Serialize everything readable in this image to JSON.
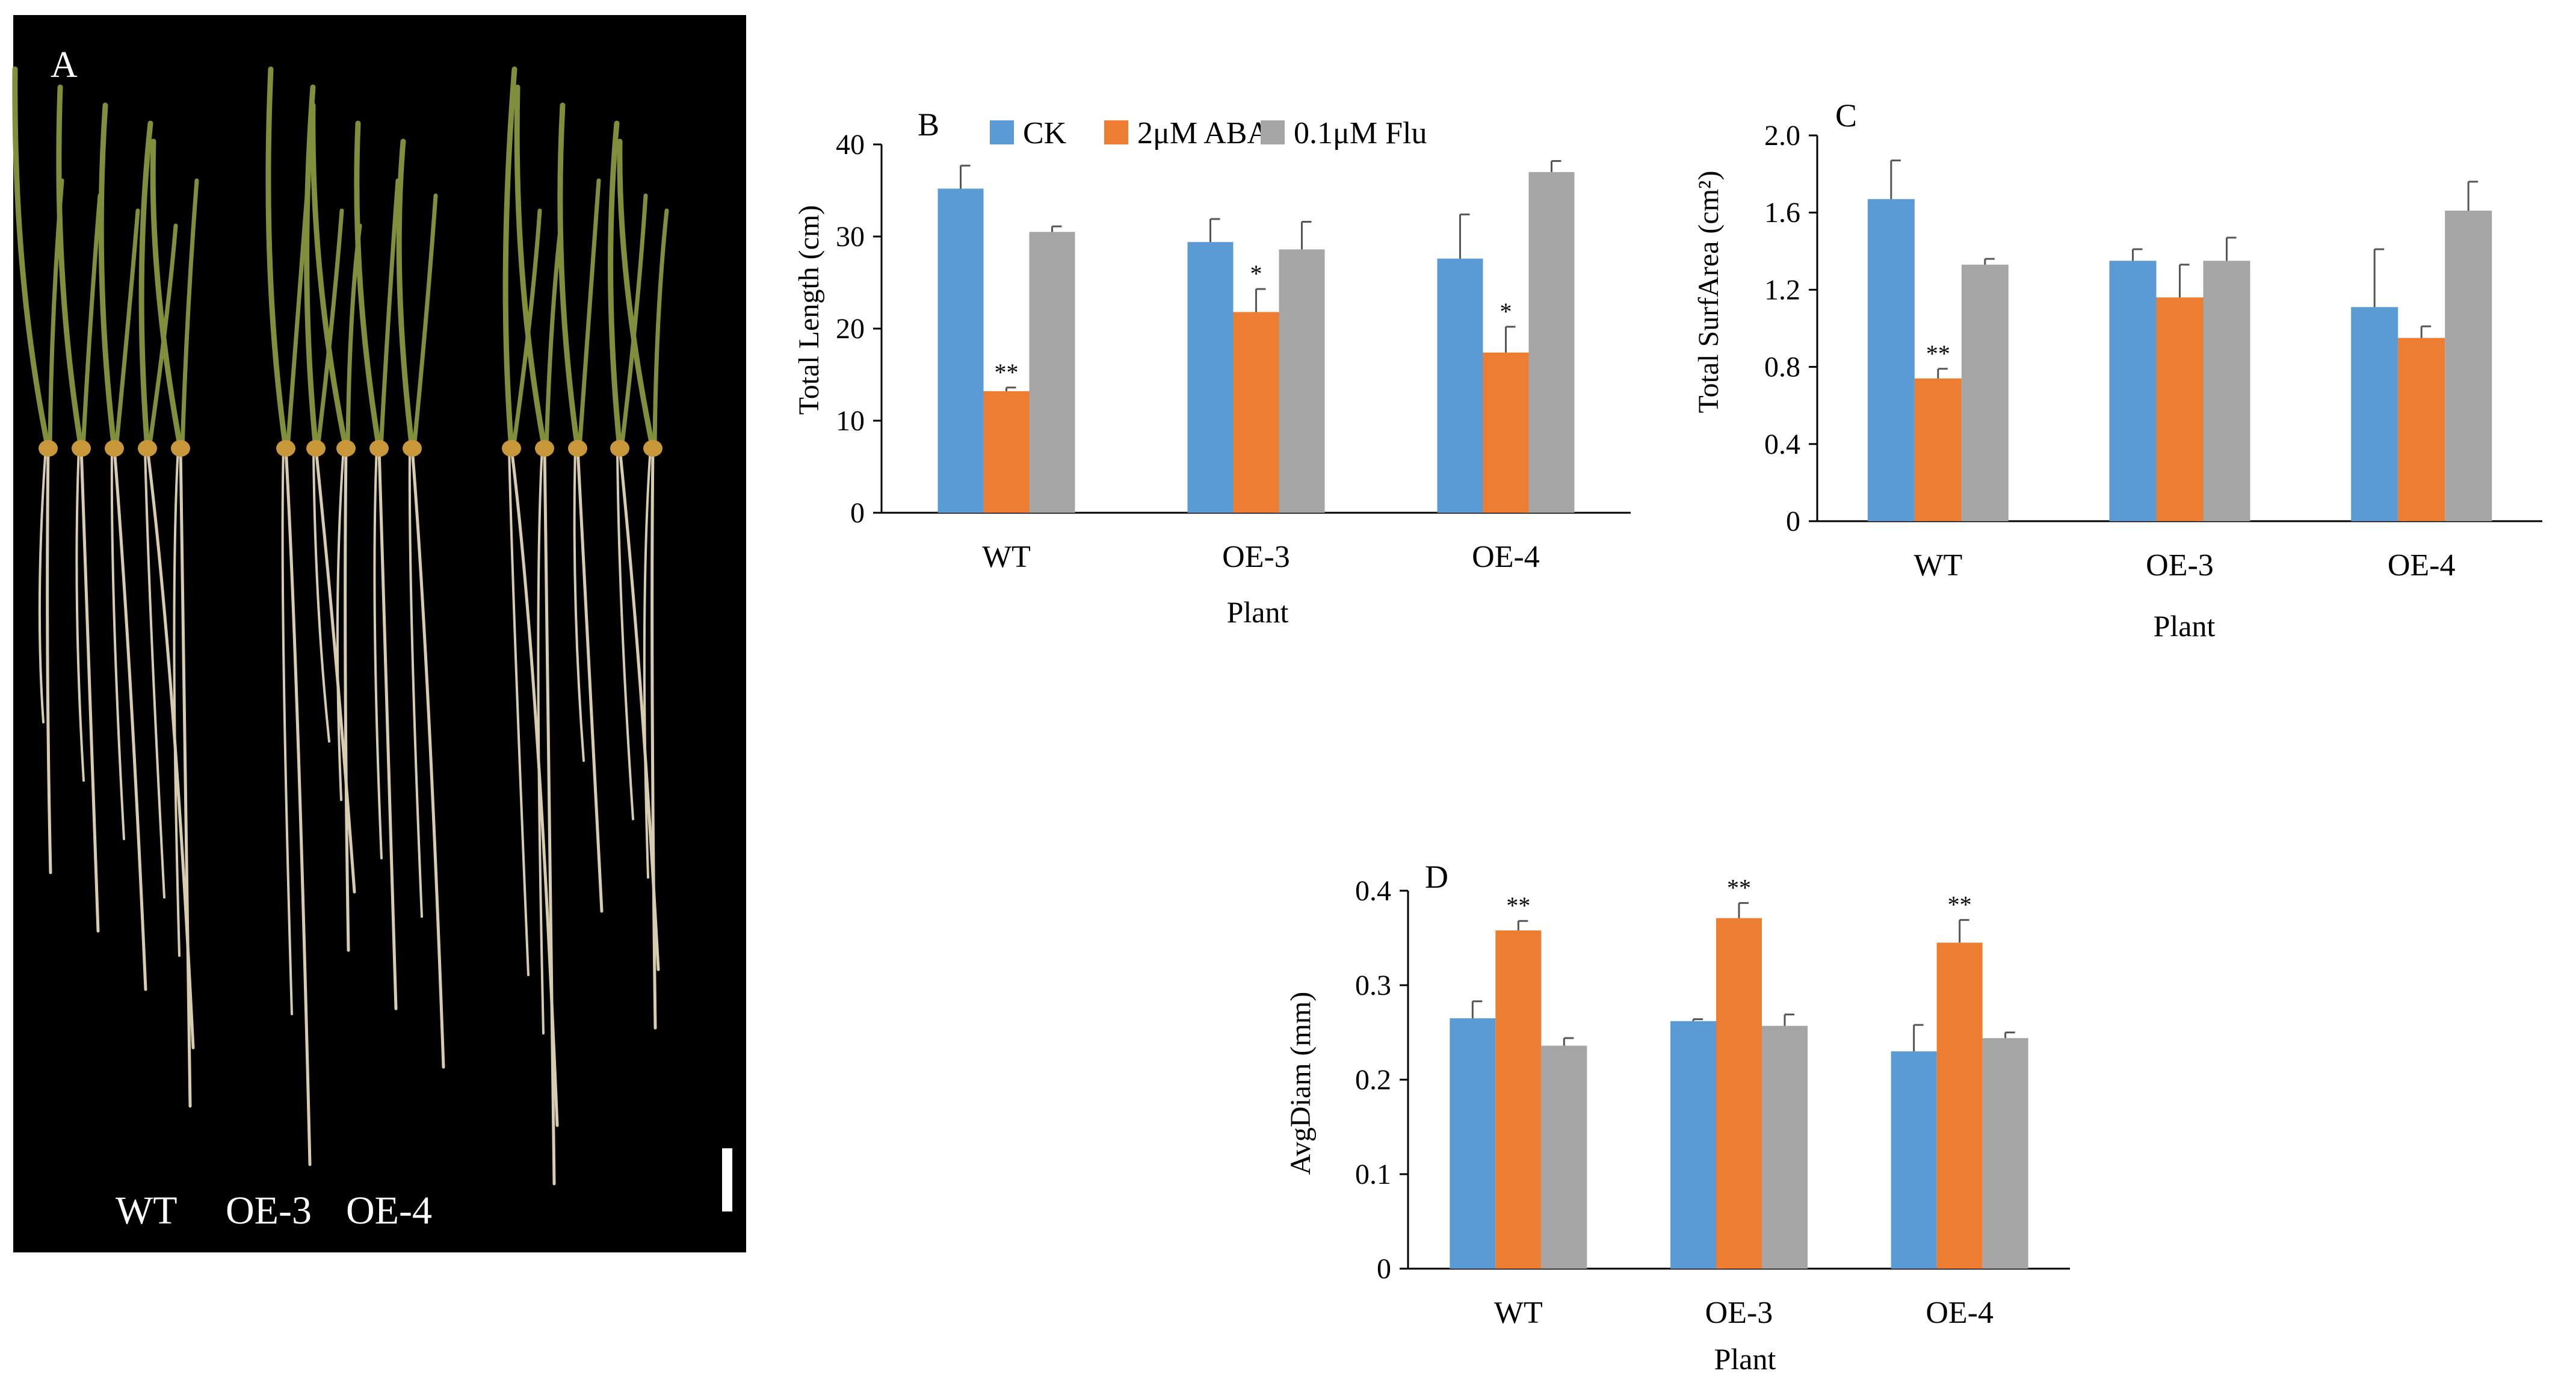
{
  "panel_a": {
    "label": "A",
    "genotype_labels": [
      "WT",
      "OE-3",
      "OE-4"
    ],
    "colors": {
      "background": "#000000",
      "leaf": "#7f8f3c",
      "root": "#d8ccb0",
      "seed": "#c8973a",
      "scale_bar": "#ffffff"
    }
  },
  "legend": [
    {
      "name": "CK",
      "color": "#5b9bd5"
    },
    {
      "name": "2μM ABA",
      "color": "#ed7d31"
    },
    {
      "name": "0.1μM Flu",
      "color": "#a5a5a5"
    }
  ],
  "chart_data": [
    {
      "panel": "B",
      "type": "bar",
      "title": "",
      "xlabel": "Plant",
      "ylabel": "Total Length (cm)",
      "categories": [
        "WT",
        "OE-3",
        "OE-4"
      ],
      "ylim": [
        0,
        40
      ],
      "yticks": [
        "0",
        "10",
        "20",
        "30",
        "40"
      ],
      "series": [
        {
          "name": "CK",
          "values": [
            35.2,
            29.4,
            27.6
          ],
          "errors": [
            2.5,
            2.5,
            4.8
          ]
        },
        {
          "name": "2μM ABA",
          "values": [
            13.2,
            21.8,
            17.4
          ],
          "errors": [
            0.4,
            2.5,
            2.8
          ],
          "significance": [
            "**",
            "*",
            "*"
          ]
        },
        {
          "name": "0.1μM Flu",
          "values": [
            30.5,
            28.6,
            37.0
          ],
          "errors": [
            0.6,
            3.0,
            1.2
          ]
        }
      ]
    },
    {
      "panel": "C",
      "type": "bar",
      "title": "",
      "xlabel": "Plant",
      "ylabel": "Total SurfArea (cm²)",
      "categories": [
        "WT",
        "OE-3",
        "OE-4"
      ],
      "ylim": [
        0,
        2.0
      ],
      "yticks": [
        "0",
        "0.4",
        "0.8",
        "1.2",
        "1.6",
        "2.0"
      ],
      "series": [
        {
          "name": "CK",
          "values": [
            1.67,
            1.35,
            1.11
          ],
          "errors": [
            0.2,
            0.06,
            0.3
          ]
        },
        {
          "name": "2μM ABA",
          "values": [
            0.74,
            1.16,
            0.95
          ],
          "errors": [
            0.05,
            0.17,
            0.06
          ],
          "significance": [
            "**",
            "",
            ""
          ]
        },
        {
          "name": "0.1μM Flu",
          "values": [
            1.33,
            1.35,
            1.61
          ],
          "errors": [
            0.03,
            0.12,
            0.15
          ]
        }
      ]
    },
    {
      "panel": "D",
      "type": "bar",
      "title": "",
      "xlabel": "Plant",
      "ylabel": "AvgDiam (mm)",
      "categories": [
        "WT",
        "OE-3",
        "OE-4"
      ],
      "ylim": [
        0,
        0.4
      ],
      "yticks": [
        "0",
        "0.1",
        "0.2",
        "0.3",
        "0.4"
      ],
      "series": [
        {
          "name": "CK",
          "values": [
            0.265,
            0.262,
            0.23
          ],
          "errors": [
            0.018,
            0.002,
            0.028
          ]
        },
        {
          "name": "2μM ABA",
          "values": [
            0.358,
            0.371,
            0.345
          ],
          "errors": [
            0.01,
            0.016,
            0.024
          ],
          "significance": [
            "**",
            "**",
            "**"
          ]
        },
        {
          "name": "0.1μM Flu",
          "values": [
            0.236,
            0.257,
            0.244
          ],
          "errors": [
            0.008,
            0.012,
            0.006
          ]
        }
      ]
    }
  ]
}
